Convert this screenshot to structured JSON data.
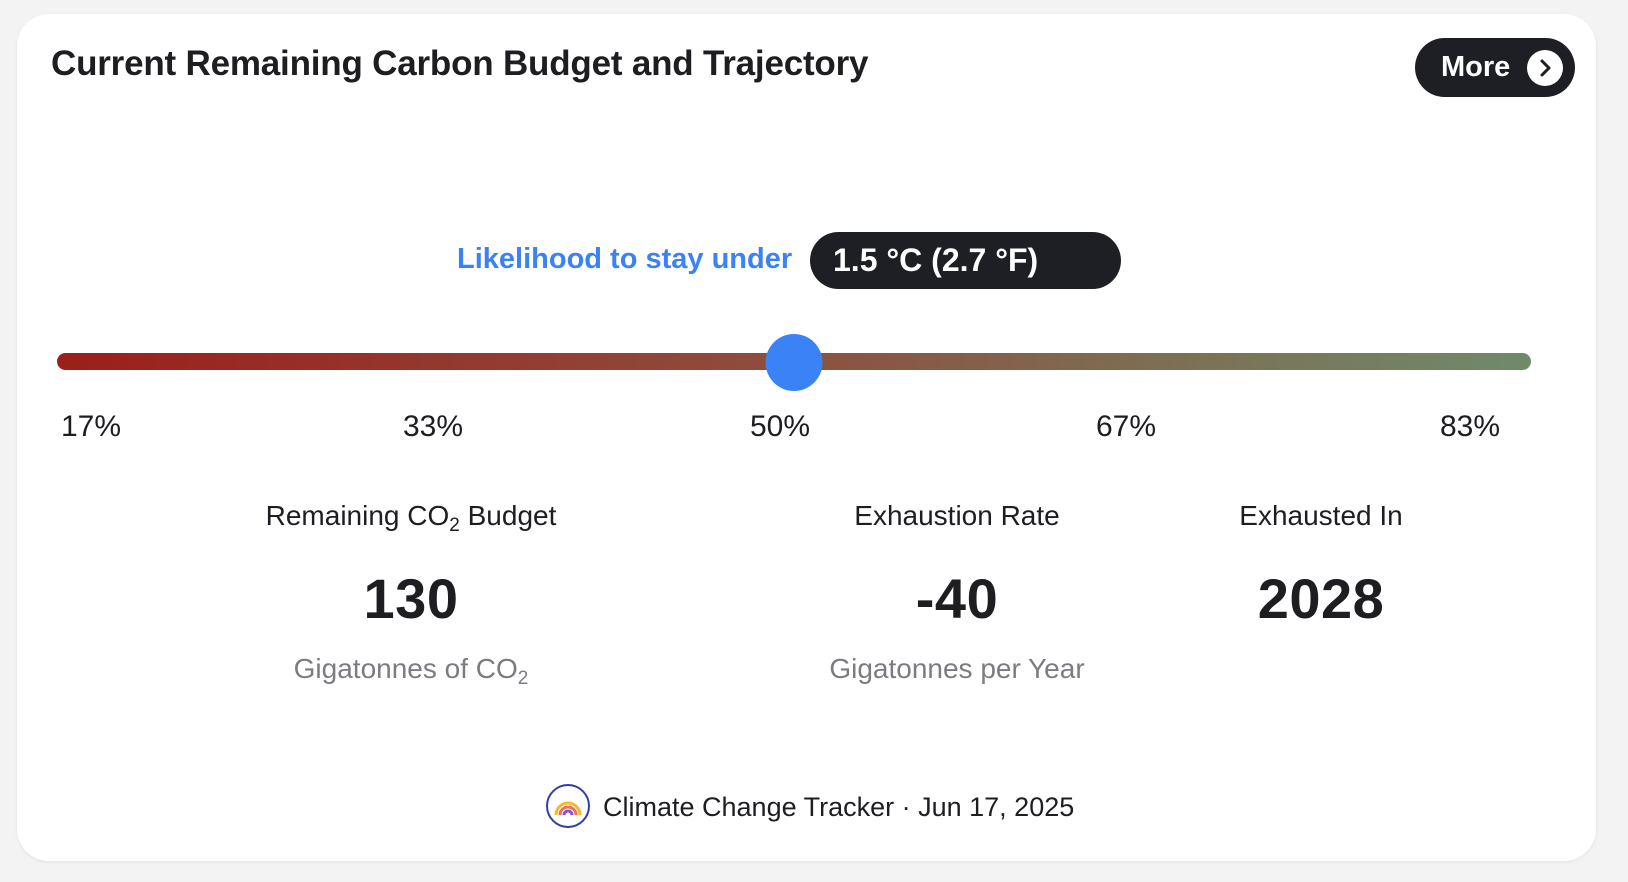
{
  "header": {
    "title": "Current Remaining Carbon Budget and Trajectory",
    "more_label": "More"
  },
  "likelihood": {
    "label": "Likelihood to stay under",
    "target": "1.5 °C (2.7 °F)"
  },
  "slider": {
    "ticks": [
      "17%",
      "33%",
      "50%",
      "67%",
      "83%"
    ],
    "selected_value": 50,
    "min": 17,
    "max": 83,
    "gradient_start_color": "#9b1f1a",
    "gradient_end_color": "#6f8b68",
    "thumb_color": "#3b82f6"
  },
  "stats": {
    "budget": {
      "label_main": "Remaining CO",
      "label_sub": "2",
      "label_end": " Budget",
      "value": "130",
      "unit_main": "Gigatonnes of CO",
      "unit_sub": "2"
    },
    "rate": {
      "label": "Exhaustion Rate",
      "value": "-40",
      "unit": "Gigatonnes per Year"
    },
    "exhausted": {
      "label": "Exhausted In",
      "value": "2028"
    }
  },
  "footer": {
    "source": "Climate Change Tracker · Jun 17, 2025",
    "logo_icon": "rainbow-logo-icon"
  },
  "colors": {
    "accent": "#3b82f6",
    "dark": "#1e1f24",
    "muted": "#7b7c82"
  }
}
